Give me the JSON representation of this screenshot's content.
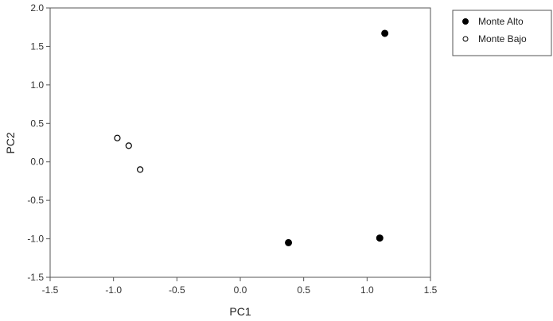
{
  "chart_data": {
    "type": "scatter",
    "title": "",
    "xlabel": "PC1",
    "ylabel": "PC2",
    "xlim": [
      -1.5,
      1.5
    ],
    "ylim": [
      -1.5,
      2.0
    ],
    "xticks": [
      "-1.5",
      "-1.0",
      "-0.5",
      "0.0",
      "0.5",
      "1.0",
      "1.5"
    ],
    "yticks": [
      "-1.5",
      "-1.0",
      "-0.5",
      "0.0",
      "0.5",
      "1.0",
      "1.5",
      "2.0"
    ],
    "grid": false,
    "legend_position": "top-right outside",
    "series": [
      {
        "name": "Monte Alto",
        "marker": "filled-circle",
        "color": "#000000",
        "points": [
          [
            1.14,
            1.67
          ],
          [
            0.38,
            -1.05
          ],
          [
            1.1,
            -0.99
          ]
        ]
      },
      {
        "name": "Monte Bajo",
        "marker": "open-circle",
        "color": "#000000",
        "points": [
          [
            -0.97,
            0.31
          ],
          [
            -0.88,
            0.21
          ],
          [
            -0.79,
            -0.1
          ]
        ]
      }
    ]
  }
}
